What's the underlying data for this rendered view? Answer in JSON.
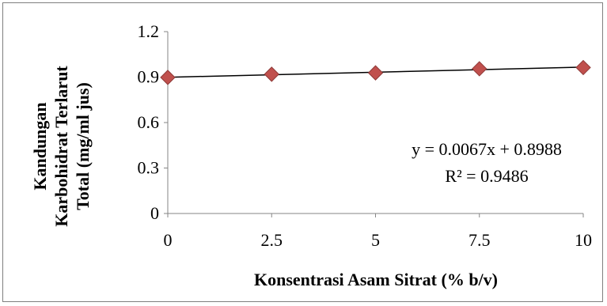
{
  "chart_data": {
    "type": "scatter",
    "xlabel": "Konsentrasi Asam Sitrat (% b/v)",
    "ylabel_lines": [
      "Kandungan",
      "Karbohidrat Terlarut",
      "Total (mg/ml jus)"
    ],
    "x_ticks": [
      "0",
      "2.5",
      "5",
      "7.5",
      "10"
    ],
    "y_ticks": [
      "0",
      "0.3",
      "0.6",
      "0.9",
      "1.2"
    ],
    "xlim": [
      0,
      10
    ],
    "ylim": [
      0,
      1.2
    ],
    "grid": false,
    "series": [
      {
        "x": [
          0,
          2.5,
          5,
          7.5,
          10
        ],
        "y": [
          0.898,
          0.919,
          0.928,
          0.955,
          0.963
        ]
      }
    ],
    "trendline": {
      "type": "linear",
      "slope": 0.0067,
      "intercept": 0.8988
    },
    "equation": "y = 0.0067x + 0.8988",
    "r_squared": "R² = 0.9486",
    "colors": {
      "marker": "#c0504d",
      "marker_edge": "#8e3a38",
      "trendline": "#000000",
      "axis": "#868686"
    }
  }
}
